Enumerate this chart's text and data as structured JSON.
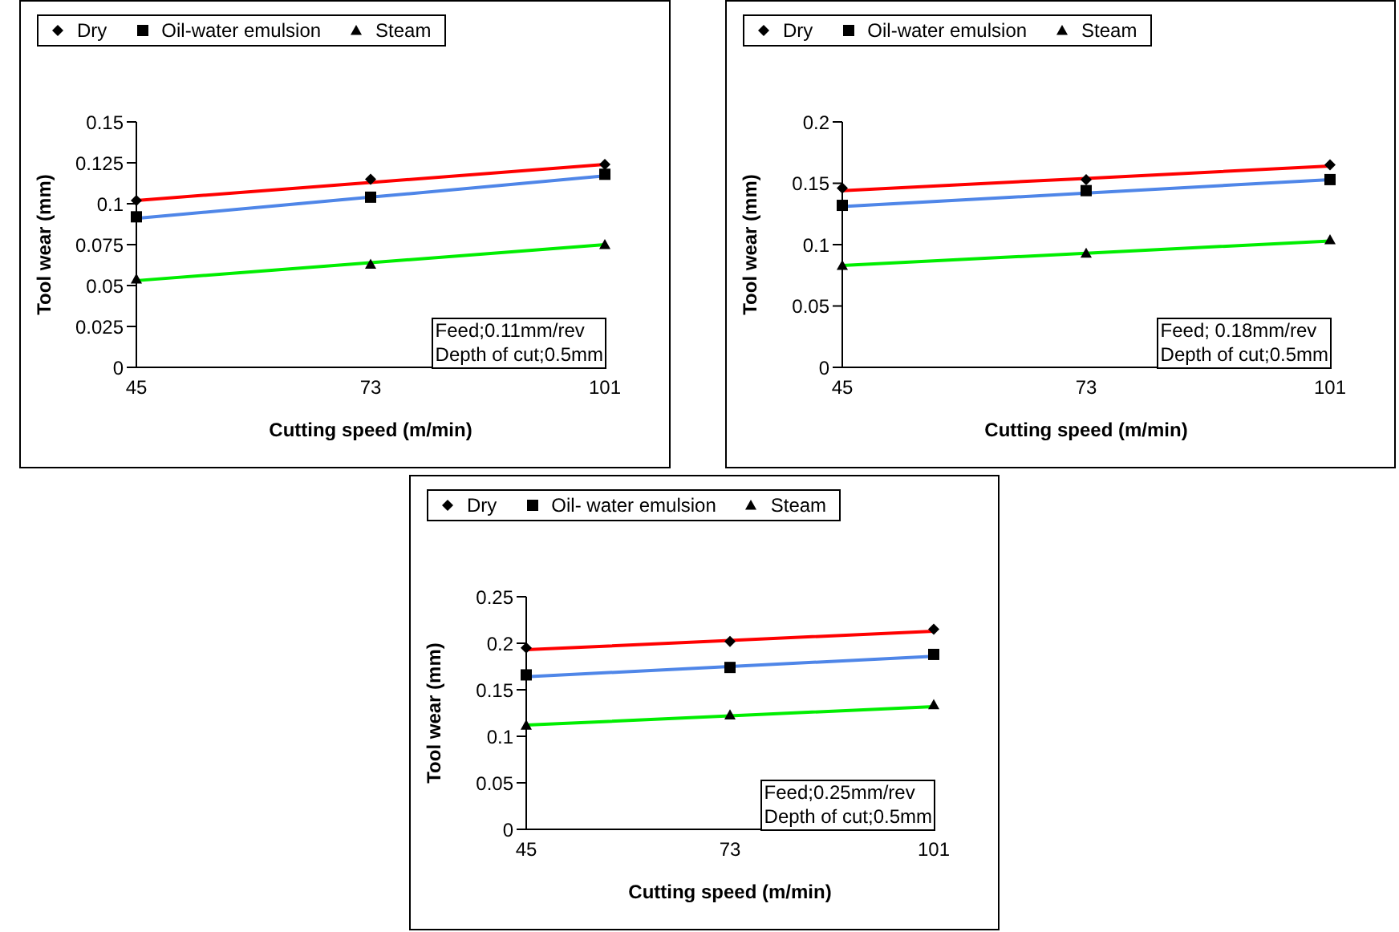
{
  "chart_data": [
    {
      "type": "scatter",
      "xlabel": "Cutting speed (m/min)",
      "ylabel": "Tool wear (mm)",
      "categories": [
        "45",
        "73",
        "101"
      ],
      "ylim": [
        0,
        0.15
      ],
      "yticks": [
        0,
        0.025,
        0.05,
        0.075,
        0.1,
        0.125,
        0.15
      ],
      "grid": false,
      "legend": "top",
      "annotations": [
        "Feed;0.11mm/rev",
        "Depth of cut;0.5mm"
      ],
      "series": [
        {
          "name": "Dry",
          "color": "#000000",
          "marker": "diamond",
          "values": [
            0.102,
            0.115,
            0.124
          ]
        },
        {
          "name": "Oil-water emulsion",
          "color": "#000000",
          "marker": "square",
          "values": [
            0.092,
            0.104,
            0.118
          ]
        },
        {
          "name": "Steam",
          "color": "#000000",
          "marker": "triangle",
          "values": [
            0.054,
            0.063,
            0.075
          ]
        },
        {
          "type": "line",
          "color": "#ff0000",
          "marker": "none",
          "values": [
            0.102,
            0.113,
            0.124
          ]
        },
        {
          "type": "line",
          "color": "#4f86e8",
          "marker": "none",
          "values": [
            0.091,
            0.104,
            0.117
          ]
        },
        {
          "type": "line",
          "color": "#00ee00",
          "marker": "none",
          "values": [
            0.053,
            0.064,
            0.075
          ]
        }
      ]
    },
    {
      "type": "scatter",
      "xlabel": "Cutting speed (m/min)",
      "ylabel": "Tool wear (mm)",
      "categories": [
        "45",
        "73",
        "101"
      ],
      "ylim": [
        0,
        0.2
      ],
      "yticks": [
        0,
        0.05,
        0.1,
        0.15,
        0.2
      ],
      "grid": false,
      "legend": "top",
      "annotations": [
        "Feed; 0.18mm/rev",
        "Depth of cut;0.5mm"
      ],
      "series": [
        {
          "name": "Dry",
          "color": "#000000",
          "marker": "diamond",
          "values": [
            0.146,
            0.153,
            0.165
          ]
        },
        {
          "name": "Oil-water emulsion",
          "color": "#000000",
          "marker": "square",
          "values": [
            0.132,
            0.144,
            0.153
          ]
        },
        {
          "name": "Steam",
          "color": "#000000",
          "marker": "triangle",
          "values": [
            0.083,
            0.093,
            0.104
          ]
        },
        {
          "type": "line",
          "color": "#ff0000",
          "marker": "none",
          "values": [
            0.144,
            0.154,
            0.164
          ]
        },
        {
          "type": "line",
          "color": "#4f86e8",
          "marker": "none",
          "values": [
            0.131,
            0.142,
            0.153
          ]
        },
        {
          "type": "line",
          "color": "#00ee00",
          "marker": "none",
          "values": [
            0.083,
            0.093,
            0.103
          ]
        }
      ]
    },
    {
      "type": "scatter",
      "xlabel": "Cutting speed (m/min)",
      "ylabel": "Tool wear (mm)",
      "categories": [
        "45",
        "73",
        "101"
      ],
      "ylim": [
        0,
        0.25
      ],
      "yticks": [
        0,
        0.05,
        0.1,
        0.15,
        0.2,
        0.25
      ],
      "grid": false,
      "legend": "top",
      "annotations": [
        "Feed;0.25mm/rev",
        "Depth of cut;0.5mm"
      ],
      "series": [
        {
          "name": "Dry",
          "color": "#000000",
          "marker": "diamond",
          "values": [
            0.195,
            0.202,
            0.215
          ]
        },
        {
          "name": "Oil- water emulsion",
          "color": "#000000",
          "marker": "square",
          "values": [
            0.166,
            0.174,
            0.188
          ]
        },
        {
          "name": "Steam",
          "color": "#000000",
          "marker": "triangle",
          "values": [
            0.112,
            0.123,
            0.134
          ]
        },
        {
          "type": "line",
          "color": "#ff0000",
          "marker": "none",
          "values": [
            0.193,
            0.203,
            0.213
          ]
        },
        {
          "type": "line",
          "color": "#4f86e8",
          "marker": "none",
          "values": [
            0.164,
            0.175,
            0.186
          ]
        },
        {
          "type": "line",
          "color": "#00ee00",
          "marker": "none",
          "values": [
            0.112,
            0.122,
            0.132
          ]
        }
      ]
    }
  ]
}
